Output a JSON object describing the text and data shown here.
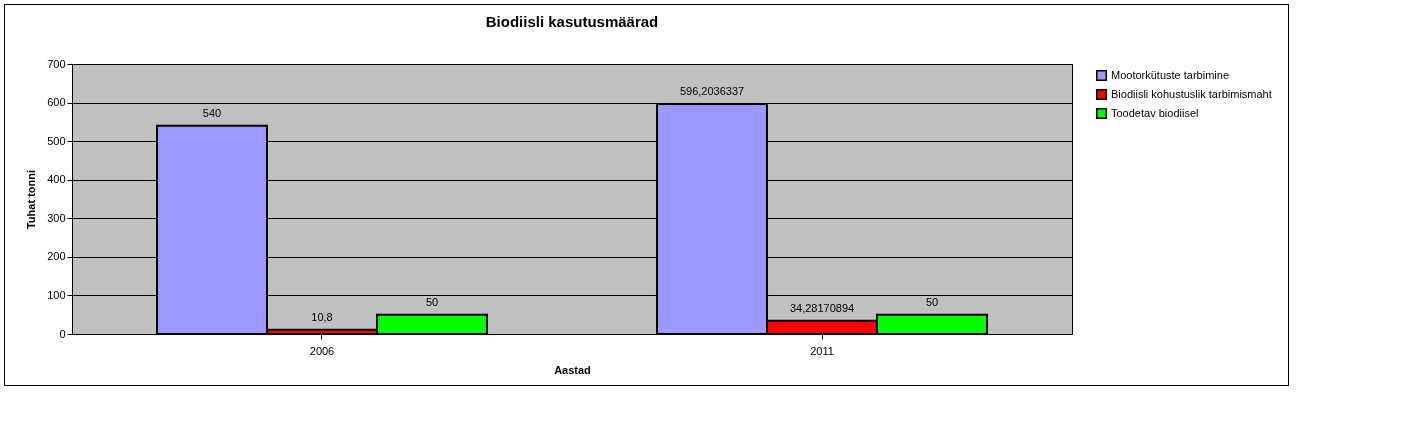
{
  "chart_data": {
    "type": "bar",
    "title": "Biodiisli kasutusmäärad",
    "xlabel": "Aastad",
    "ylabel": "Tuhat tonni",
    "categories": [
      "2006",
      "2011"
    ],
    "series": [
      {
        "name": "Mootorkütuste tarbimine",
        "color": "#9999ff",
        "values": [
          540,
          596.2036337
        ],
        "value_labels": [
          "540",
          "596,2036337"
        ]
      },
      {
        "name": "Biodiisli kohustuslik tarbimismaht",
        "color": "#ff0000",
        "values": [
          10.8,
          34.28170894
        ],
        "value_labels": [
          "10,8",
          "34,28170894"
        ]
      },
      {
        "name": "Toodetav biodiisel",
        "color": "#00ff00",
        "values": [
          50,
          50
        ],
        "value_labels": [
          "50",
          "50"
        ]
      }
    ],
    "ylim": [
      0,
      700
    ],
    "yticks": [
      0,
      100,
      200,
      300,
      400,
      500,
      600,
      700
    ],
    "grid": "y",
    "legend": "right"
  }
}
